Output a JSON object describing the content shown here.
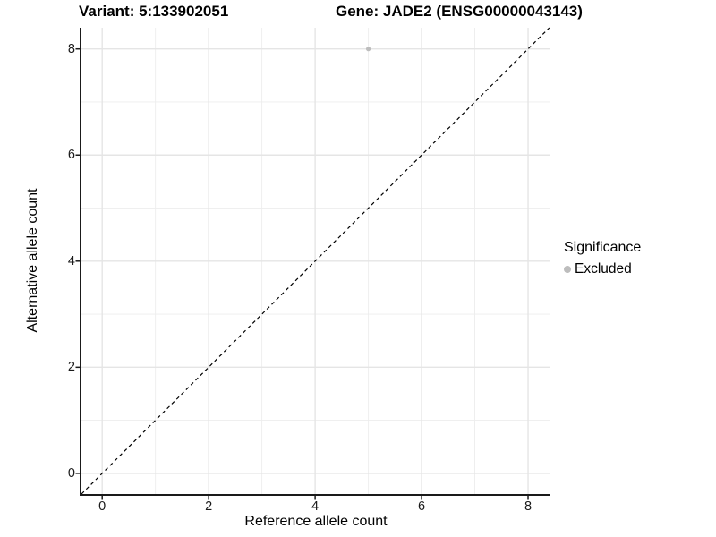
{
  "titles": {
    "variant": "Variant: 5:133902051",
    "gene": "Gene: JADE2 (ENSG00000043143)"
  },
  "legend": {
    "title": "Significance",
    "items": [
      {
        "label": "Excluded",
        "color": "#b8b8b8"
      }
    ]
  },
  "colors": {
    "background": "#ffffff",
    "axis_line": "#1a1a1a",
    "grid_major": "#e5e5e5",
    "grid_minor": "#ededed",
    "reference_line": "#000000",
    "point": "#bdbdbd"
  },
  "chart_data": {
    "type": "scatter",
    "title": "Variant: 5:133902051   Gene: JADE2 (ENSG00000043143)",
    "xlabel": "Reference allele count",
    "ylabel": "Alternative allele count",
    "xlim": [
      -0.39,
      8.42
    ],
    "ylim": [
      -0.39,
      8.4
    ],
    "x_ticks": [
      0,
      2,
      4,
      6,
      8
    ],
    "y_ticks": [
      0,
      2,
      4,
      6,
      8
    ],
    "x_minor_ticks": [
      1,
      3,
      5,
      7
    ],
    "y_minor_ticks": [
      1,
      3,
      5,
      7
    ],
    "grid": true,
    "legend_position": "right",
    "series": [
      {
        "name": "Excluded",
        "color": "#bdbdbd",
        "points": [
          {
            "x": 5,
            "y": 8
          }
        ]
      }
    ],
    "reference_line": {
      "type": "identity",
      "slope": 1,
      "intercept": 0,
      "style": "dashed",
      "color": "#000000"
    }
  }
}
